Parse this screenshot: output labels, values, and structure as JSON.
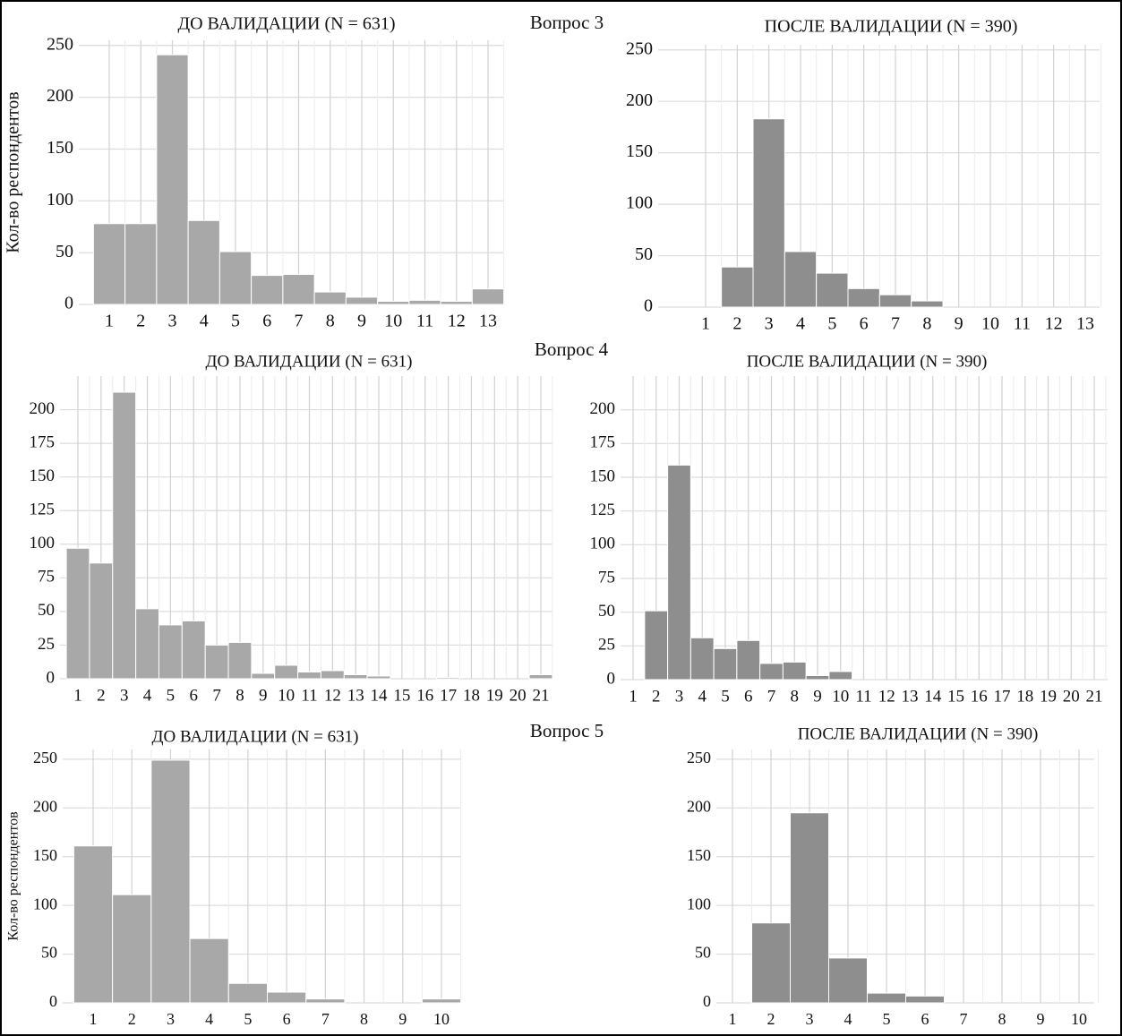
{
  "questions": [
    "Вопрос 3",
    "Вопрос 4",
    "Вопрос 5"
  ],
  "chart_data": [
    {
      "type": "bar",
      "title": "ДО ВАЛИДАЦИИ (N = 631)",
      "y_label": "Кол-во респондентов",
      "color": "#a8a8a8",
      "grid": true,
      "categories": [
        "1",
        "2",
        "3",
        "4",
        "5",
        "6",
        "7",
        "8",
        "9",
        "10",
        "11",
        "12",
        "13"
      ],
      "values": [
        78,
        78,
        241,
        81,
        51,
        28,
        29,
        12,
        7,
        3,
        4,
        3,
        15
      ],
      "ylim": [
        0,
        255
      ],
      "yticks": [
        0,
        50,
        100,
        150,
        200,
        250
      ]
    },
    {
      "type": "bar",
      "title": "ПОСЛЕ ВАЛИДАЦИИ (N = 390)",
      "color": "#8e8e8e",
      "grid": true,
      "categories": [
        "1",
        "2",
        "3",
        "4",
        "5",
        "6",
        "7",
        "8",
        "9",
        "10",
        "11",
        "12",
        "13"
      ],
      "values": [
        0,
        39,
        183,
        54,
        33,
        18,
        12,
        6,
        0,
        0,
        0,
        0,
        0
      ],
      "ylim": [
        0,
        255
      ],
      "yticks": [
        0,
        50,
        100,
        150,
        200,
        250
      ]
    },
    {
      "type": "bar",
      "title": "ДО ВАЛИДАЦИИ (N = 631)",
      "color": "#a8a8a8",
      "grid": true,
      "categories": [
        "1",
        "2",
        "3",
        "4",
        "5",
        "6",
        "7",
        "8",
        "9",
        "10",
        "11",
        "12",
        "13",
        "14",
        "15",
        "16",
        "17",
        "18",
        "19",
        "20",
        "21"
      ],
      "values": [
        97,
        86,
        213,
        52,
        40,
        43,
        25,
        27,
        4,
        10,
        5,
        6,
        3,
        2,
        0,
        0,
        1,
        0,
        0,
        0,
        3
      ],
      "ylim": [
        0,
        225
      ],
      "yticks": [
        0,
        25,
        50,
        75,
        100,
        125,
        150,
        175,
        200
      ]
    },
    {
      "type": "bar",
      "title": "ПОСЛЕ ВАЛИДАЦИИ (N = 390)",
      "color": "#8e8e8e",
      "grid": true,
      "categories": [
        "1",
        "2",
        "3",
        "4",
        "5",
        "6",
        "7",
        "8",
        "9",
        "10",
        "11",
        "12",
        "13",
        "14",
        "15",
        "16",
        "17",
        "18",
        "19",
        "20",
        "21"
      ],
      "values": [
        0,
        51,
        159,
        31,
        23,
        29,
        12,
        13,
        3,
        6,
        0,
        0,
        0,
        0,
        0,
        0,
        0,
        0,
        0,
        0,
        0
      ],
      "ylim": [
        0,
        225
      ],
      "yticks": [
        0,
        25,
        50,
        75,
        100,
        125,
        150,
        175,
        200
      ]
    },
    {
      "type": "bar",
      "title": "ДО ВАЛИДАЦИИ (N = 631)",
      "y_label": "Кол-во респондентов",
      "color": "#a8a8a8",
      "grid": true,
      "categories": [
        "1",
        "2",
        "3",
        "4",
        "5",
        "6",
        "7",
        "8",
        "9",
        "10"
      ],
      "values": [
        161,
        111,
        249,
        66,
        20,
        11,
        4,
        0,
        0,
        4
      ],
      "ylim": [
        0,
        260
      ],
      "yticks": [
        0,
        50,
        100,
        150,
        200,
        250
      ]
    },
    {
      "type": "bar",
      "title": "ПОСЛЕ ВАЛИДАЦИИ (N = 390)",
      "color": "#8e8e8e",
      "grid": true,
      "categories": [
        "1",
        "2",
        "3",
        "4",
        "5",
        "6",
        "7",
        "8",
        "9",
        "10"
      ],
      "values": [
        0,
        82,
        195,
        46,
        10,
        7,
        0,
        0,
        0,
        0
      ],
      "ylim": [
        0,
        260
      ],
      "yticks": [
        0,
        50,
        100,
        150,
        200,
        250
      ]
    }
  ]
}
